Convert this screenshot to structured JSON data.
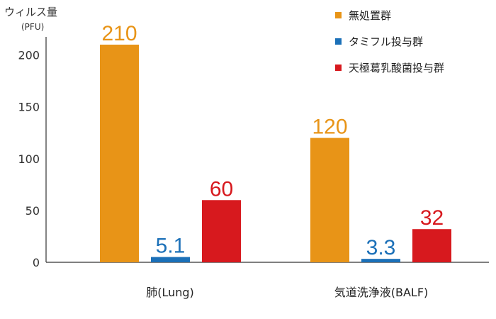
{
  "chart_data": {
    "type": "bar",
    "ylabel": "ウィルス量",
    "yunit": "(PFU)",
    "ylim": [
      0,
      220
    ],
    "yticks": [
      0,
      50,
      100,
      150,
      200
    ],
    "categories": [
      "肺(Lung)",
      "気道洗浄液(BALF)"
    ],
    "series": [
      {
        "name": "無処置群",
        "color": "#E89417",
        "values": [
          210,
          120
        ],
        "labels": [
          "210",
          "120"
        ]
      },
      {
        "name": "タミフル投与群",
        "color": "#1B70B8",
        "values": [
          5.1,
          3.3
        ],
        "labels": [
          "5.1",
          "3.3"
        ]
      },
      {
        "name": "天極葛乳酸菌投与群",
        "color": "#D7191E",
        "values": [
          60,
          32
        ],
        "labels": [
          "60",
          "32"
        ]
      }
    ],
    "legend_position": "top-right",
    "grid": false
  }
}
